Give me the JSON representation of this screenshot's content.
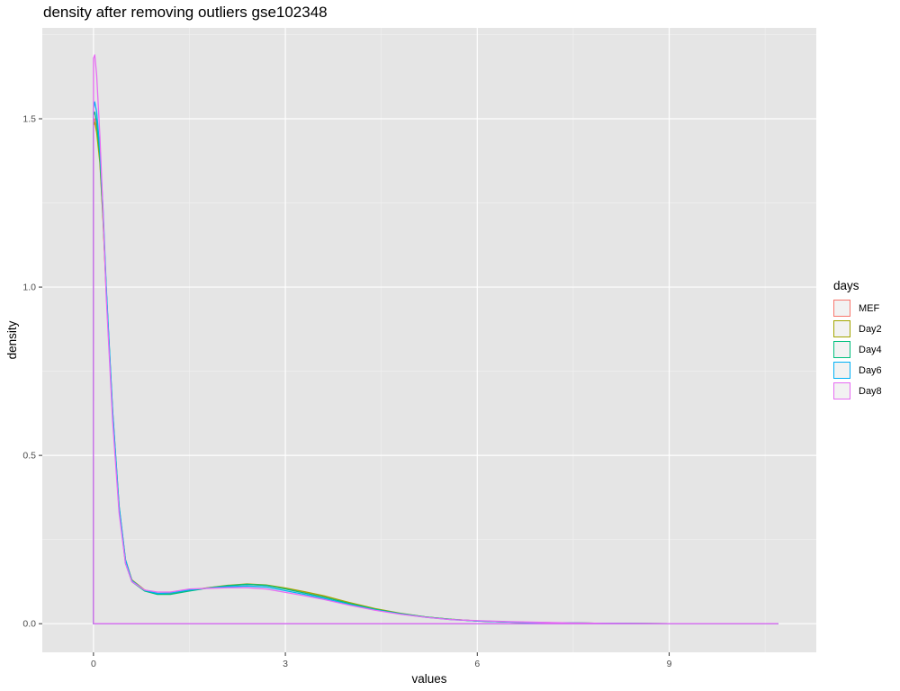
{
  "chart_data": {
    "type": "line",
    "title": "density after removing outliers gse102348",
    "xlabel": "values",
    "ylabel": "density",
    "xlim": [
      -0.8,
      11.3
    ],
    "ylim": [
      -0.085,
      1.77
    ],
    "x_ticks": [
      0,
      3,
      6,
      9
    ],
    "x_tick_labels": [
      "0",
      "3",
      "6",
      "9"
    ],
    "y_ticks": [
      0.0,
      0.5,
      1.0,
      1.5
    ],
    "y_tick_labels": [
      "0.0",
      "0.5",
      "1.0",
      "1.5"
    ],
    "grid": true,
    "legend": {
      "title": "days",
      "position": "right"
    },
    "series": [
      {
        "name": "MEF",
        "color": "#F8766D",
        "x": [
          0,
          0.02,
          0.05,
          0.1,
          0.15,
          0.2,
          0.3,
          0.4,
          0.5,
          0.6,
          0.8,
          1.0,
          1.2,
          1.5,
          1.8,
          2.1,
          2.4,
          2.7,
          3.0,
          3.3,
          3.6,
          4.0,
          4.4,
          4.8,
          5.2,
          5.6,
          6.0,
          6.5,
          7.0,
          7.5,
          8.0,
          9.0,
          10.0,
          10.7
        ],
        "y": [
          1.49,
          1.5,
          1.47,
          1.38,
          1.2,
          0.98,
          0.62,
          0.34,
          0.19,
          0.13,
          0.1,
          0.09,
          0.09,
          0.1,
          0.107,
          0.113,
          0.117,
          0.114,
          0.104,
          0.092,
          0.08,
          0.06,
          0.043,
          0.03,
          0.02,
          0.013,
          0.008,
          0.005,
          0.003,
          0.002,
          0.001,
          0.0,
          0.0,
          0.0
        ]
      },
      {
        "name": "Day2",
        "color": "#A3A500",
        "x": [
          0,
          0.02,
          0.05,
          0.1,
          0.15,
          0.2,
          0.3,
          0.4,
          0.5,
          0.6,
          0.8,
          1.0,
          1.2,
          1.5,
          1.8,
          2.1,
          2.4,
          2.7,
          3.0,
          3.3,
          3.6,
          4.0,
          4.4,
          4.8,
          5.2,
          5.6,
          6.0,
          6.5,
          7.0,
          7.5,
          8.0,
          9.0,
          10.0,
          10.7
        ],
        "y": [
          1.48,
          1.49,
          1.46,
          1.37,
          1.2,
          0.99,
          0.63,
          0.35,
          0.19,
          0.13,
          0.1,
          0.088,
          0.088,
          0.098,
          0.107,
          0.114,
          0.118,
          0.115,
          0.106,
          0.095,
          0.083,
          0.063,
          0.045,
          0.031,
          0.02,
          0.013,
          0.008,
          0.005,
          0.003,
          0.002,
          0.001,
          0.0,
          0.0,
          0.0
        ]
      },
      {
        "name": "Day4",
        "color": "#00BF7D",
        "x": [
          0,
          0.02,
          0.05,
          0.1,
          0.15,
          0.2,
          0.3,
          0.4,
          0.5,
          0.6,
          0.8,
          1.0,
          1.2,
          1.5,
          1.8,
          2.1,
          2.4,
          2.7,
          3.0,
          3.3,
          3.6,
          4.0,
          4.4,
          4.8,
          5.2,
          5.6,
          6.0,
          6.5,
          7.0,
          7.5,
          8.0,
          9.0,
          10.0,
          10.7
        ],
        "y": [
          1.51,
          1.52,
          1.49,
          1.39,
          1.21,
          0.99,
          0.62,
          0.34,
          0.18,
          0.125,
          0.097,
          0.087,
          0.087,
          0.097,
          0.106,
          0.113,
          0.117,
          0.114,
          0.103,
          0.091,
          0.079,
          0.06,
          0.043,
          0.03,
          0.02,
          0.013,
          0.008,
          0.005,
          0.003,
          0.002,
          0.001,
          0.0,
          0.0,
          0.0
        ]
      },
      {
        "name": "Day6",
        "color": "#00B0F6",
        "x": [
          0,
          0.02,
          0.05,
          0.1,
          0.15,
          0.2,
          0.3,
          0.4,
          0.5,
          0.6,
          0.8,
          1.0,
          1.2,
          1.5,
          1.8,
          2.1,
          2.4,
          2.7,
          3.0,
          3.3,
          3.6,
          4.0,
          4.4,
          4.8,
          5.2,
          5.6,
          6.0,
          6.5,
          7.0,
          7.5,
          8.0,
          9.0,
          10.0,
          10.7
        ],
        "y": [
          1.53,
          1.55,
          1.52,
          1.41,
          1.23,
          1.0,
          0.63,
          0.35,
          0.19,
          0.128,
          0.099,
          0.09,
          0.091,
          0.1,
          0.106,
          0.11,
          0.112,
          0.109,
          0.098,
          0.087,
          0.075,
          0.057,
          0.041,
          0.029,
          0.019,
          0.012,
          0.008,
          0.005,
          0.003,
          0.002,
          0.001,
          0.0,
          0.0,
          0.0
        ]
      },
      {
        "name": "Day8",
        "color": "#E76BF3",
        "x": [
          0,
          0.02,
          0.05,
          0.1,
          0.15,
          0.2,
          0.3,
          0.4,
          0.5,
          0.6,
          0.8,
          1.0,
          1.2,
          1.5,
          1.8,
          2.1,
          2.4,
          2.7,
          3.0,
          3.3,
          3.6,
          4.0,
          4.4,
          4.8,
          5.2,
          5.6,
          6.0,
          6.5,
          7.0,
          7.5,
          8.0,
          9.0,
          10.0,
          10.7
        ],
        "y": [
          1.68,
          1.69,
          1.63,
          1.45,
          1.22,
          0.97,
          0.6,
          0.33,
          0.18,
          0.125,
          0.1,
          0.094,
          0.094,
          0.103,
          0.105,
          0.107,
          0.107,
          0.103,
          0.093,
          0.083,
          0.072,
          0.055,
          0.04,
          0.028,
          0.019,
          0.012,
          0.009,
          0.006,
          0.004,
          0.002,
          0.001,
          0.0,
          0.0,
          0.0
        ]
      }
    ]
  }
}
